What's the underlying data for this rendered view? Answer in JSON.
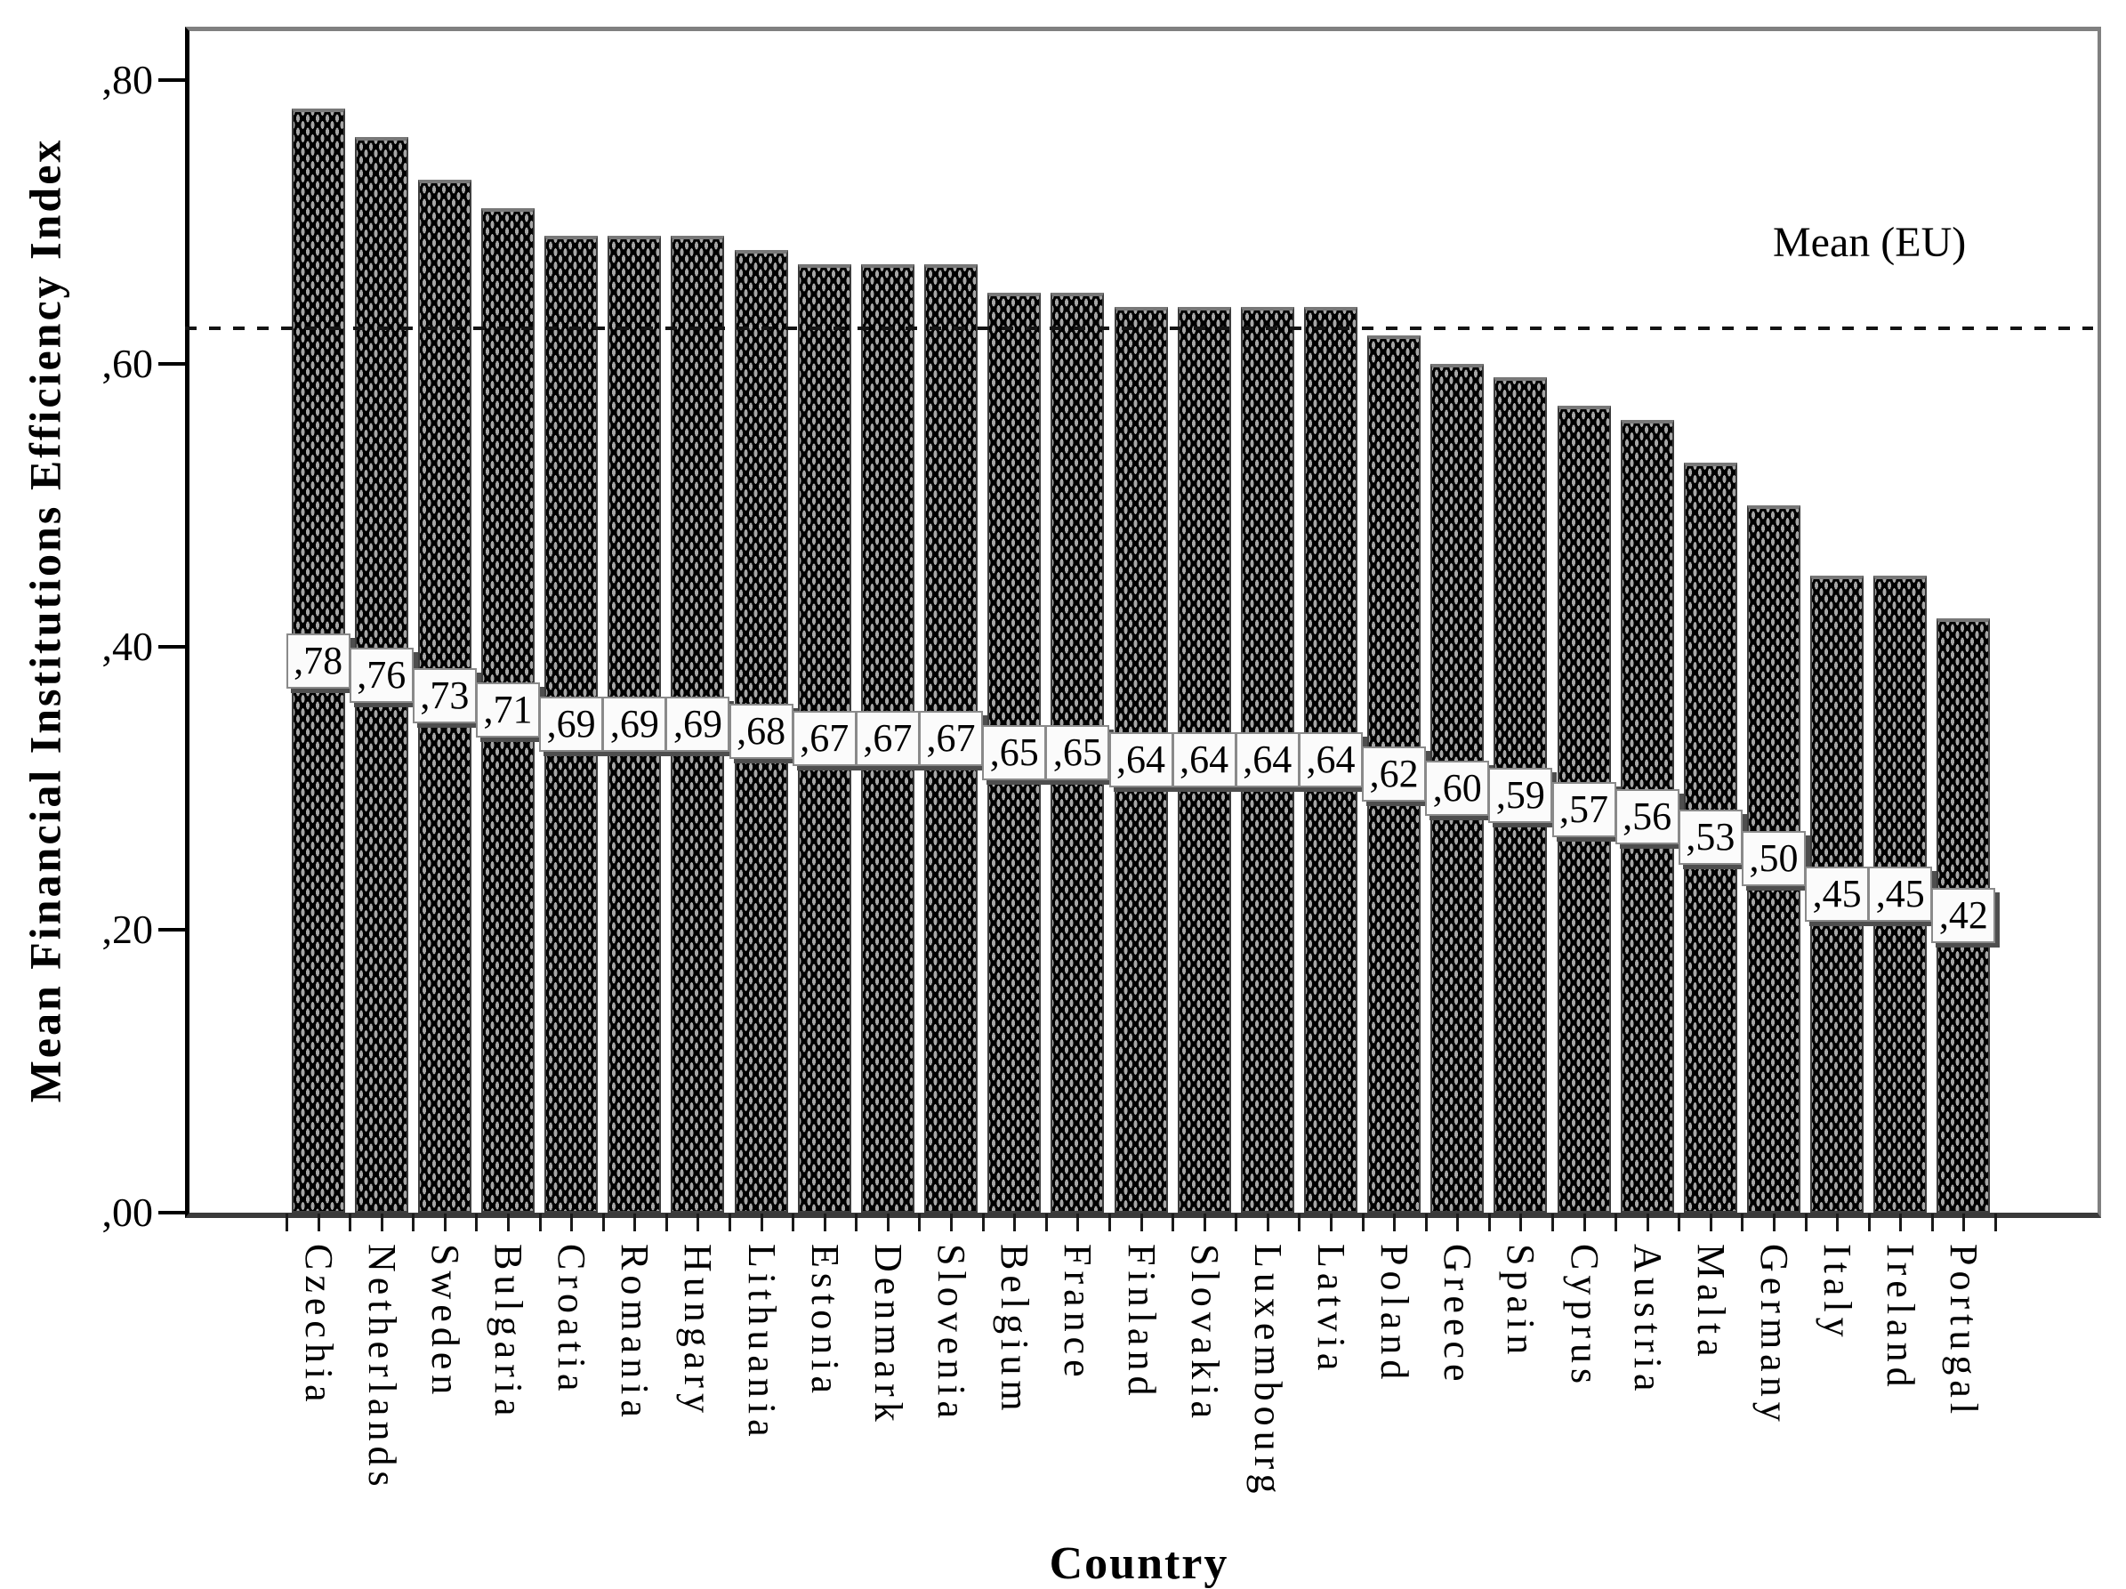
{
  "figure": {
    "y_axis_title": "Mean Financial Institutions Efficiency Index",
    "x_axis_title": "Country"
  },
  "chart_data": {
    "type": "bar",
    "title": "",
    "xlabel": "Country",
    "ylabel": "Mean Financial Institutions Efficiency Index",
    "ylim": [
      0,
      0.838
    ],
    "grid": false,
    "legend_position": "none",
    "bar_fill_color": "#000000",
    "bar_texture_dot_color": "#a6a6a6",
    "value_label_box_color": "#fbfbfb",
    "mean_line": {
      "label": "Mean (EU)",
      "value": 0.625,
      "style": "dashed"
    },
    "y_ticks": [
      {
        "value": 0.0,
        "label": ",00"
      },
      {
        "value": 0.2,
        "label": ",20"
      },
      {
        "value": 0.4,
        "label": ",40"
      },
      {
        "value": 0.6,
        "label": ",60"
      },
      {
        "value": 0.8,
        "label": ",80"
      }
    ],
    "categories": [
      "Czechia",
      "Netherlands",
      "Sweden",
      "Bulgaria",
      "Croatia",
      "Romania",
      "Hungary",
      "Lithuania",
      "Estonia",
      "Denmark",
      "Slovenia",
      "Belgium",
      "France",
      "Finland",
      "Slovakia",
      "Luxembourg",
      "Latvia",
      "Poland",
      "Greece",
      "Spain",
      "Cyprus",
      "Austria",
      "Malta",
      "Germany",
      "Italy",
      "Ireland",
      "Portugal"
    ],
    "values": [
      0.78,
      0.76,
      0.73,
      0.71,
      0.69,
      0.69,
      0.69,
      0.68,
      0.67,
      0.67,
      0.67,
      0.65,
      0.65,
      0.64,
      0.64,
      0.64,
      0.64,
      0.62,
      0.6,
      0.59,
      0.57,
      0.56,
      0.53,
      0.5,
      0.45,
      0.45,
      0.42
    ],
    "bar_value_labels": [
      ",78",
      ",76",
      ",73",
      ",71",
      ",69",
      ",69",
      ",69",
      ",68",
      ",67",
      ",67",
      ",67",
      ",65",
      ",65",
      ",64",
      ",64",
      ",64",
      ",64",
      ",62",
      ",60",
      ",59",
      ",57",
      ",56",
      ",53",
      ",50",
      ",45",
      ",45",
      ",42"
    ]
  }
}
